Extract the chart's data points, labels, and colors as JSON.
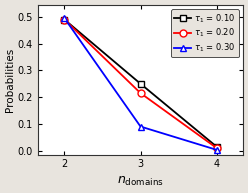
{
  "x": [
    2,
    3,
    4
  ],
  "series": [
    {
      "label": "$\\tau_1$ = 0.10",
      "y": [
        0.49,
        0.25,
        0.015
      ],
      "color": "black",
      "marker": "s",
      "markerfacecolor": "white",
      "markersize": 5
    },
    {
      "label": "$\\tau_1$ = 0.20",
      "y": [
        0.49,
        0.215,
        0.01
      ],
      "color": "red",
      "marker": "o",
      "markerfacecolor": "white",
      "markersize": 5
    },
    {
      "label": "$\\tau_1$ = 0.30",
      "y": [
        0.495,
        0.09,
        0.003
      ],
      "color": "blue",
      "marker": "^",
      "markerfacecolor": "white",
      "markersize": 5
    }
  ],
  "ylabel": "Probabilities",
  "xlim": [
    1.65,
    4.35
  ],
  "ylim": [
    -0.015,
    0.545
  ],
  "yticks": [
    0.0,
    0.1,
    0.2,
    0.3,
    0.4,
    0.5
  ],
  "xticks": [
    2,
    3,
    4
  ],
  "plot_bg_color": "#ffffff",
  "fig_bg_color": "#e8e4de",
  "legend_loc": "upper right"
}
